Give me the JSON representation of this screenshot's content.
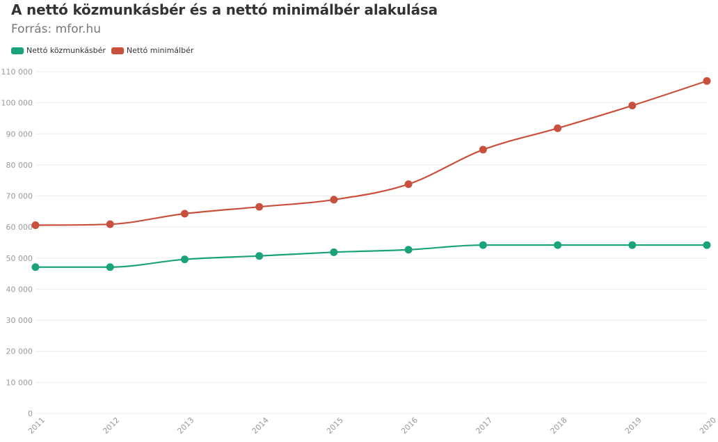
{
  "header": {
    "title": "A nettó közmunkásbér és a nettó minimálbér alakulása",
    "subtitle": "Forrás: mfor.hu"
  },
  "colors": {
    "series_1": "#1aa37a",
    "series_2": "#c9503c",
    "grid": "#ececec",
    "axis_text": "#999999"
  },
  "chart_data": {
    "type": "line",
    "title": "A nettó közmunkásbér és a nettó minimálbér alakulása",
    "subtitle": "Forrás: mfor.hu",
    "xlabel": "",
    "ylabel": "",
    "x": [
      "2011",
      "2012",
      "2013",
      "2014",
      "2015",
      "2016",
      "2017",
      "2018",
      "2019",
      "2020"
    ],
    "ylim": [
      0,
      110000
    ],
    "yticks": [
      0,
      10000,
      20000,
      30000,
      40000,
      50000,
      60000,
      70000,
      80000,
      90000,
      100000,
      110000
    ],
    "ytick_labels": [
      "0",
      "10 000",
      "20 000",
      "30 000",
      "40 000",
      "50 000",
      "60 000",
      "70 000",
      "80 000",
      "90 000",
      "100 000",
      "110 000"
    ],
    "grid": true,
    "legend_position": "top-left",
    "series": [
      {
        "name": "Nettó közmunkásbér",
        "color": "#1aa37a",
        "values": [
          47100,
          47100,
          49600,
          50700,
          51900,
          52700,
          54200,
          54200,
          54200,
          54200
        ]
      },
      {
        "name": "Nettó minimálbér",
        "color": "#c9503c",
        "values": [
          60600,
          60900,
          64300,
          66500,
          68800,
          73800,
          84900,
          91800,
          99100,
          107000
        ]
      }
    ]
  }
}
